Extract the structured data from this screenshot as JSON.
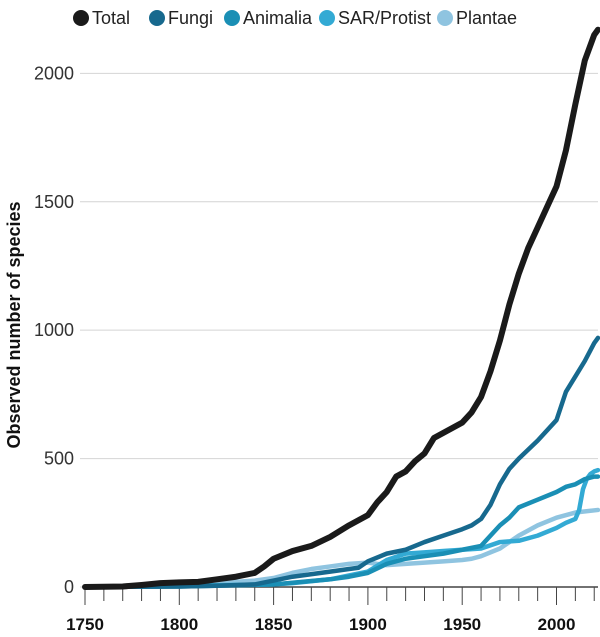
{
  "chart_data": {
    "type": "line",
    "ylabel": "Observed number of species",
    "xlim": [
      1750,
      2022
    ],
    "ylim": [
      0,
      2200
    ],
    "x_ticks": [
      "1750",
      "1800",
      "1850",
      "1900",
      "1950",
      "2000"
    ],
    "y_ticks": [
      "0",
      "500",
      "1000",
      "1500",
      "2000"
    ],
    "grid": "horizontal",
    "legend_position": "top",
    "series": [
      {
        "name": "Total",
        "color": "#1a1a1a",
        "x": [
          1750,
          1770,
          1780,
          1790,
          1800,
          1810,
          1820,
          1830,
          1840,
          1845,
          1850,
          1860,
          1870,
          1880,
          1890,
          1900,
          1905,
          1910,
          1915,
          1920,
          1925,
          1930,
          1935,
          1940,
          1945,
          1950,
          1955,
          1960,
          1965,
          1970,
          1975,
          1980,
          1985,
          1990,
          1995,
          2000,
          2005,
          2010,
          2015,
          2020,
          2022
        ],
        "y": [
          0,
          2,
          8,
          15,
          18,
          20,
          30,
          40,
          55,
          80,
          110,
          140,
          160,
          195,
          240,
          280,
          330,
          370,
          430,
          450,
          490,
          520,
          580,
          600,
          620,
          640,
          680,
          740,
          840,
          960,
          1100,
          1220,
          1320,
          1400,
          1480,
          1560,
          1700,
          1880,
          2050,
          2150,
          2170
        ]
      },
      {
        "name": "Fungi",
        "color": "#17698e",
        "x": [
          1750,
          1800,
          1820,
          1840,
          1860,
          1880,
          1890,
          1895,
          1900,
          1910,
          1920,
          1930,
          1940,
          1950,
          1955,
          1960,
          1965,
          1970,
          1975,
          1980,
          1990,
          2000,
          2005,
          2010,
          2015,
          2020,
          2022
        ],
        "y": [
          0,
          2,
          5,
          10,
          40,
          60,
          70,
          75,
          100,
          130,
          145,
          175,
          200,
          225,
          240,
          265,
          320,
          400,
          460,
          500,
          570,
          650,
          760,
          820,
          880,
          950,
          970
        ]
      },
      {
        "name": "Animalia",
        "color": "#1a8fb5",
        "x": [
          1750,
          1800,
          1850,
          1880,
          1890,
          1900,
          1910,
          1920,
          1930,
          1940,
          1950,
          1960,
          1965,
          1970,
          1975,
          1980,
          1990,
          2000,
          2005,
          2010,
          2015,
          2020,
          2022
        ],
        "y": [
          0,
          2,
          10,
          30,
          40,
          55,
          90,
          110,
          120,
          130,
          145,
          160,
          200,
          240,
          270,
          310,
          340,
          370,
          390,
          400,
          420,
          430,
          430
        ]
      },
      {
        "name": "SAR/Protist",
        "color": "#33aad4",
        "x": [
          1750,
          1800,
          1850,
          1860,
          1880,
          1900,
          1910,
          1920,
          1930,
          1940,
          1950,
          1960,
          1970,
          1980,
          1990,
          2000,
          2005,
          2010,
          2012,
          2014,
          2016,
          2018,
          2020,
          2022
        ],
        "y": [
          0,
          5,
          10,
          15,
          30,
          60,
          105,
          130,
          135,
          140,
          145,
          150,
          175,
          180,
          200,
          230,
          250,
          265,
          300,
          380,
          420,
          440,
          450,
          455
        ]
      },
      {
        "name": "Plantae",
        "color": "#8fc4e0",
        "x": [
          1750,
          1780,
          1800,
          1820,
          1840,
          1850,
          1860,
          1870,
          1880,
          1890,
          1900,
          1910,
          1920,
          1930,
          1940,
          1950,
          1955,
          1960,
          1970,
          1980,
          1990,
          2000,
          2010,
          2022
        ],
        "y": [
          0,
          5,
          10,
          15,
          25,
          35,
          55,
          70,
          80,
          90,
          95,
          85,
          90,
          95,
          100,
          105,
          110,
          120,
          150,
          200,
          240,
          270,
          290,
          300
        ]
      }
    ]
  }
}
